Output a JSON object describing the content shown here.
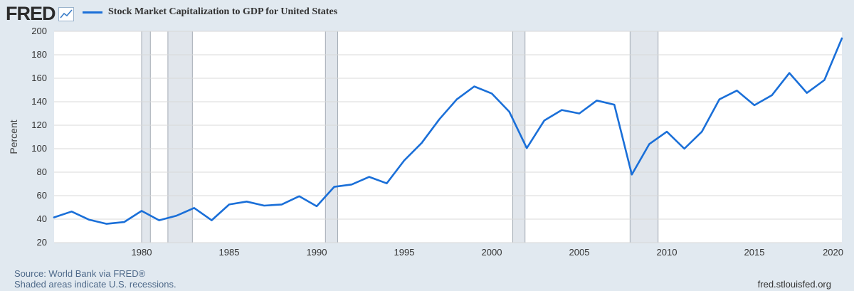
{
  "header": {
    "logo_text": "FRED",
    "legend_label": "Stock Market Capitalization to GDP for United States",
    "series_color": "#1a6fd8"
  },
  "footer": {
    "source": "Source: World Bank via FRED®",
    "shading_note": "Shaded areas indicate U.S. recessions.",
    "site": "fred.stlouisfed.org"
  },
  "chart_data": {
    "type": "line",
    "title": "",
    "xlabel": "",
    "ylabel": "Percent",
    "xlim": [
      1975,
      2020
    ],
    "ylim": [
      20,
      200
    ],
    "yticks": [
      20,
      40,
      60,
      80,
      100,
      120,
      140,
      160,
      180,
      200
    ],
    "xticks": [
      1980,
      1985,
      1990,
      1995,
      2000,
      2005,
      2010,
      2015,
      2020
    ],
    "grid": true,
    "legend_position": "top-left",
    "recessions": [
      [
        1980.0,
        1980.5
      ],
      [
        1981.5,
        1982.9
      ],
      [
        1990.5,
        1991.2
      ],
      [
        2001.2,
        2001.9
      ],
      [
        2007.9,
        2009.5
      ]
    ],
    "series": [
      {
        "name": "Stock Market Capitalization to GDP for United States",
        "color": "#1a6fd8",
        "x": [
          1975,
          1976,
          1977,
          1978,
          1979,
          1980,
          1981,
          1982,
          1983,
          1984,
          1985,
          1986,
          1987,
          1988,
          1989,
          1990,
          1991,
          1992,
          1993,
          1994,
          1995,
          1996,
          1997,
          1998,
          1999,
          2000,
          2001,
          2002,
          2003,
          2004,
          2005,
          2006,
          2007,
          2008,
          2009,
          2010,
          2011,
          2012,
          2013,
          2014,
          2015,
          2016,
          2017,
          2018,
          2019,
          2020
        ],
        "values": [
          41.5,
          46.5,
          39.5,
          36.0,
          37.5,
          47.0,
          39.0,
          43.0,
          49.5,
          39.0,
          52.5,
          55.0,
          51.5,
          52.5,
          59.5,
          51.0,
          67.5,
          69.5,
          76.0,
          70.5,
          90.0,
          105.0,
          125.0,
          142.0,
          153.0,
          147.0,
          131.5,
          100.5,
          124.0,
          133.0,
          130.0,
          141.0,
          137.5,
          78.0,
          104.0,
          114.5,
          100.0,
          114.5,
          142.0,
          149.5,
          137.0,
          145.5,
          164.5,
          147.5,
          158.5,
          194.0
        ]
      }
    ]
  }
}
